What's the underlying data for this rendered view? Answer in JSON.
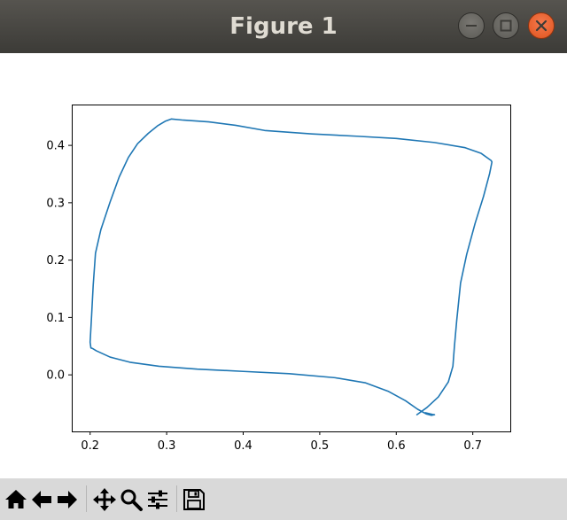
{
  "window": {
    "title": "Figure 1"
  },
  "toolbar": {
    "items": [
      {
        "name": "home-button",
        "icon": "home-icon"
      },
      {
        "name": "back-button",
        "icon": "arrow-left-icon"
      },
      {
        "name": "forward-button",
        "icon": "arrow-right-icon"
      },
      {
        "name": "pan-button",
        "icon": "move-icon"
      },
      {
        "name": "zoom-button",
        "icon": "magnifier-icon"
      },
      {
        "name": "configure-subplots-button",
        "icon": "sliders-icon"
      },
      {
        "name": "save-button",
        "icon": "floppy-disk-icon"
      }
    ]
  },
  "colors": {
    "line": "#1f77b4",
    "titlebar": "#3c3b37",
    "close": "#e95420",
    "toolbar": "#d9d9d9"
  },
  "chart_data": {
    "type": "line",
    "title": "",
    "xlabel": "",
    "ylabel": "",
    "xlim": [
      0.176,
      0.749
    ],
    "ylim": [
      -0.0986,
      0.4712
    ],
    "xticks": [
      0.2,
      0.3,
      0.4,
      0.5,
      0.6,
      0.7
    ],
    "xtick_labels": [
      "0.2",
      "0.3",
      "0.4",
      "0.5",
      "0.6",
      "0.7"
    ],
    "yticks": [
      0.0,
      0.1,
      0.2,
      0.3,
      0.4
    ],
    "ytick_labels": [
      "0.0",
      "0.1",
      "0.2",
      "0.3",
      "0.4"
    ],
    "grid": false,
    "legend": "none",
    "series": [
      {
        "x": [
          0.627,
          0.64,
          0.655,
          0.668,
          0.674,
          0.676,
          0.679,
          0.684,
          0.692,
          0.703,
          0.714,
          0.722,
          0.725,
          0.724,
          0.711,
          0.69,
          0.65,
          0.6,
          0.548,
          0.49,
          0.428,
          0.39,
          0.355,
          0.322,
          0.306,
          0.298,
          0.288,
          0.276,
          0.262,
          0.25,
          0.238,
          0.226,
          0.214,
          0.207,
          0.204,
          0.202,
          0.2,
          0.201,
          0.203,
          0.208,
          0.226,
          0.252,
          0.29,
          0.34,
          0.4,
          0.46,
          0.52,
          0.56,
          0.59,
          0.612,
          0.628,
          0.639,
          0.646,
          0.65,
          0.647,
          0.638
        ],
        "y": [
          -0.0695,
          -0.057,
          -0.0385,
          -0.0125,
          0.015,
          0.05,
          0.095,
          0.16,
          0.21,
          0.264,
          0.311,
          0.351,
          0.371,
          0.3735,
          0.386,
          0.396,
          0.405,
          0.412,
          0.416,
          0.42,
          0.426,
          0.435,
          0.441,
          0.444,
          0.446,
          0.442,
          0.434,
          0.421,
          0.403,
          0.379,
          0.345,
          0.301,
          0.253,
          0.212,
          0.156,
          0.105,
          0.057,
          0.047,
          0.046,
          0.042,
          0.031,
          0.022,
          0.015,
          0.01,
          0.006,
          0.002,
          -0.005,
          -0.014,
          -0.029,
          -0.045,
          -0.06,
          -0.068,
          -0.0705,
          -0.0695,
          -0.069,
          -0.066
        ]
      }
    ]
  }
}
